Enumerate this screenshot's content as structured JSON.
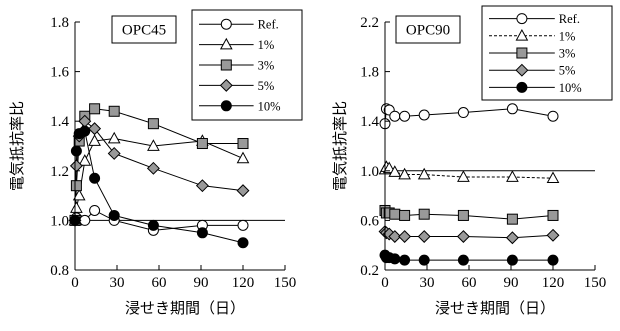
{
  "chart_data": [
    {
      "type": "line",
      "panel_label": "OPC45",
      "xlabel": "浸せき期間（日）",
      "ylabel": "電気抵抗率比",
      "xlim": [
        0,
        150
      ],
      "ylim": [
        0.8,
        1.8
      ],
      "xticks": [
        "0",
        "30",
        "60",
        "90",
        "120",
        "150"
      ],
      "yticks": [
        "0.8",
        "1.0",
        "1.2",
        "1.4",
        "1.6",
        "1.8"
      ],
      "reference_line": 1.0,
      "grid": false,
      "legend_position": "top-right",
      "series": [
        {
          "name": "Ref.",
          "marker": "circle-open",
          "dash": "solid",
          "x": [
            0,
            1,
            3,
            7,
            14,
            28,
            56,
            91,
            120
          ],
          "y": [
            1.0,
            1.01,
            1.0,
            1.0,
            1.04,
            1.0,
            0.96,
            0.98,
            0.98
          ]
        },
        {
          "name": "1%",
          "marker": "triangle-open",
          "dash": "solid",
          "x": [
            0,
            1,
            3,
            7,
            14,
            28,
            56,
            91,
            120
          ],
          "y": [
            1.0,
            1.05,
            1.1,
            1.24,
            1.32,
            1.33,
            1.3,
            1.32,
            1.25
          ]
        },
        {
          "name": "3%",
          "marker": "square-gray",
          "dash": "solid",
          "x": [
            0,
            1,
            3,
            7,
            14,
            28,
            56,
            91,
            120
          ],
          "y": [
            1.0,
            1.14,
            1.32,
            1.42,
            1.45,
            1.44,
            1.39,
            1.31,
            1.31
          ]
        },
        {
          "name": "5%",
          "marker": "diamond-gray",
          "dash": "solid",
          "x": [
            0,
            1,
            3,
            7,
            14,
            28,
            56,
            91,
            120
          ],
          "y": [
            1.0,
            1.22,
            1.34,
            1.4,
            1.37,
            1.27,
            1.21,
            1.14,
            1.12
          ]
        },
        {
          "name": "10%",
          "marker": "circle-black",
          "dash": "solid",
          "x": [
            0,
            1,
            3,
            7,
            14,
            28,
            56,
            91,
            120
          ],
          "y": [
            1.0,
            1.28,
            1.35,
            1.36,
            1.17,
            1.02,
            0.98,
            0.95,
            0.91
          ]
        }
      ]
    },
    {
      "type": "line",
      "panel_label": "OPC90",
      "xlabel": "浸せき期間（日）",
      "ylabel": "電気抵抗率比",
      "xlim": [
        0,
        150
      ],
      "ylim": [
        0.2,
        2.2
      ],
      "xticks": [
        "0",
        "30",
        "60",
        "90",
        "120",
        "150"
      ],
      "yticks": [
        "0.2",
        "0.6",
        "1.0",
        "1.4",
        "1.8",
        "2.2"
      ],
      "reference_line": 1.0,
      "grid": false,
      "legend_position": "top-right",
      "series": [
        {
          "name": "Ref.",
          "marker": "circle-open",
          "dash": "solid",
          "x": [
            0,
            1,
            3,
            7,
            14,
            28,
            56,
            91,
            120
          ],
          "y": [
            1.38,
            1.5,
            1.49,
            1.44,
            1.44,
            1.45,
            1.47,
            1.5,
            1.44
          ]
        },
        {
          "name": "1%",
          "marker": "triangle-open",
          "dash": "dashed",
          "x": [
            0,
            1,
            3,
            7,
            14,
            28,
            56,
            91,
            120
          ],
          "y": [
            1.01,
            1.03,
            1.02,
            0.99,
            0.97,
            0.97,
            0.95,
            0.95,
            0.94
          ]
        },
        {
          "name": "3%",
          "marker": "square-gray",
          "dash": "solid",
          "x": [
            0,
            1,
            3,
            7,
            14,
            28,
            56,
            91,
            120
          ],
          "y": [
            0.68,
            0.66,
            0.66,
            0.65,
            0.64,
            0.65,
            0.64,
            0.61,
            0.64
          ]
        },
        {
          "name": "5%",
          "marker": "diamond-gray",
          "dash": "solid",
          "x": [
            0,
            1,
            3,
            7,
            14,
            28,
            56,
            91,
            120
          ],
          "y": [
            0.51,
            0.5,
            0.49,
            0.47,
            0.47,
            0.47,
            0.47,
            0.46,
            0.48
          ]
        },
        {
          "name": "10%",
          "marker": "circle-black",
          "dash": "solid",
          "x": [
            0,
            1,
            3,
            7,
            14,
            28,
            56,
            91,
            120
          ],
          "y": [
            0.32,
            0.3,
            0.3,
            0.29,
            0.28,
            0.28,
            0.28,
            0.28,
            0.28
          ]
        }
      ]
    }
  ],
  "colors": {
    "ink": "#000000",
    "marker_gray_fill": "#999999",
    "marker_white_fill": "#ffffff",
    "marker_black_fill": "#000000"
  }
}
